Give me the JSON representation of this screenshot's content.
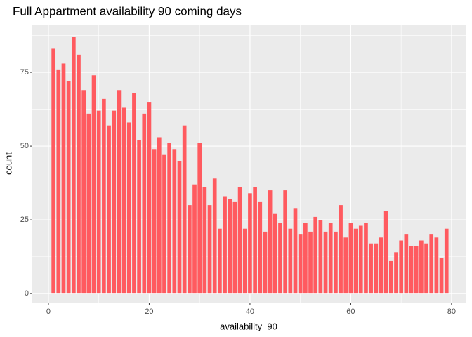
{
  "chart_data": {
    "type": "bar",
    "title": "Full Appartment availability 90 coming days",
    "x_label": "availability_90",
    "y_label": "count",
    "x": [
      1,
      2,
      3,
      4,
      5,
      6,
      7,
      8,
      9,
      10,
      11,
      12,
      13,
      14,
      15,
      16,
      17,
      18,
      19,
      20,
      21,
      22,
      23,
      24,
      25,
      26,
      27,
      28,
      29,
      30,
      31,
      32,
      33,
      34,
      35,
      36,
      37,
      38,
      39,
      40,
      41,
      42,
      43,
      44,
      45,
      46,
      47,
      48,
      49,
      50,
      51,
      52,
      53,
      54,
      55,
      56,
      57,
      58,
      59,
      60,
      61,
      62,
      63,
      64,
      65,
      66,
      67,
      68,
      69,
      70,
      71,
      72,
      73,
      74,
      75,
      76,
      77,
      78,
      79
    ],
    "values": [
      83,
      76,
      78,
      72,
      87,
      81,
      69,
      61,
      74,
      62,
      66,
      57,
      62,
      69,
      63,
      58,
      68,
      52,
      61,
      65,
      49,
      53,
      47,
      51,
      49,
      45,
      57,
      30,
      37,
      51,
      36,
      30,
      39,
      22,
      33,
      32,
      31,
      36,
      22,
      34,
      36,
      31,
      21,
      35,
      27,
      24,
      35,
      22,
      29,
      20,
      24,
      21,
      26,
      25,
      21,
      24,
      21,
      30,
      19,
      24,
      22,
      23,
      24,
      17,
      17,
      19,
      28,
      11,
      14,
      18,
      20,
      16,
      16,
      18,
      17,
      20,
      19,
      12,
      22
    ],
    "color": "#ff5a5f",
    "xlim": [
      -3.2,
      82.8
    ],
    "xticks": [
      0,
      20,
      40,
      60,
      80
    ],
    "ylim": [
      -3.3,
      91.2
    ],
    "yticks": [
      0,
      25,
      50,
      75
    ],
    "grid": true
  }
}
